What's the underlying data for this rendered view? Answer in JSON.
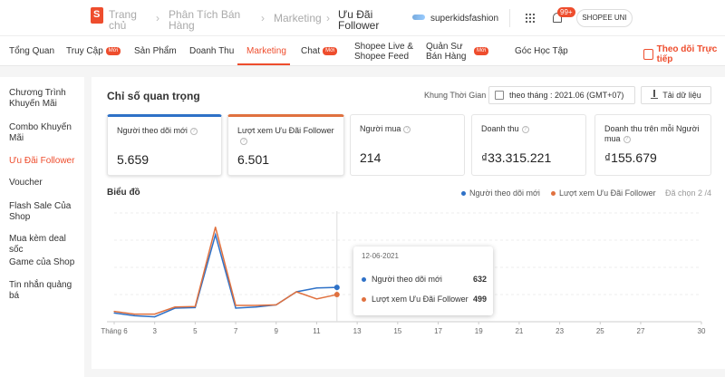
{
  "header": {
    "crumbs": [
      "Trang chủ",
      "Phân Tích Bán Hàng",
      "Marketing",
      "Ưu Đãi Follower"
    ],
    "shop_name": "superkidsfashion",
    "notif_count": "99+",
    "user_label": "SHOPEE UNI"
  },
  "nav": {
    "tabs": [
      {
        "label": "Tổng Quan"
      },
      {
        "label": "Truy Cập",
        "badge": "Mới"
      },
      {
        "label": "Sản Phẩm"
      },
      {
        "label": "Doanh Thu"
      },
      {
        "label": "Marketing"
      },
      {
        "label": "Chat",
        "badge": "Mới"
      },
      {
        "label": "Shopee Live & Shopee Feed"
      },
      {
        "label": "Quản Sư Bán Hàng",
        "badge": "Mới"
      },
      {
        "label": "Góc Học Tập"
      }
    ],
    "active_tab": "Marketing",
    "follow_link": "Theo dõi Trực tiếp"
  },
  "sidebar": {
    "items": [
      {
        "label": "Chương Trình Khuyến Mãi"
      },
      {
        "label": "Combo Khuyến Mãi"
      },
      {
        "label": "Ưu Đãi Follower"
      },
      {
        "label": "Voucher"
      },
      {
        "label": "Flash Sale Của Shop"
      },
      {
        "label": "Mua kèm deal sốc"
      },
      {
        "label": "Game của Shop"
      },
      {
        "label": "Tin nhắn quảng bá"
      }
    ],
    "active_item": "Ưu Đãi Follower"
  },
  "main": {
    "section_title": "Chỉ số quan trọng",
    "time_label": "Khung Thời Gian",
    "time_value": "theo tháng :  2021.06 (GMT+07)",
    "download_label": "Tải dữ liệu",
    "metrics": [
      {
        "label": "Người theo dõi mới",
        "value": "5.659"
      },
      {
        "label": "Lượt xem Ưu Đãi Follower",
        "value": "6.501"
      },
      {
        "label": "Người mua",
        "value": "214"
      },
      {
        "label": "Doanh thu",
        "value": "₫33.315.221"
      },
      {
        "label": "Doanh thu trên mỗi Người mua",
        "value": "₫155.679"
      }
    ],
    "chart_title": "Biểu đồ",
    "legend": [
      {
        "name": "Người theo dõi mới",
        "color": "#2e71c7"
      },
      {
        "name": "Lượt xem Ưu Đãi Follower",
        "color": "#e0713f"
      }
    ],
    "selected_count": "Đã chọn 2 /4"
  },
  "tooltip": {
    "date": "12-06-2021",
    "rows": [
      {
        "name": "Người theo dõi mới",
        "value": "632",
        "color": "#2e71c7"
      },
      {
        "name": "Lượt xem Ưu Đãi Follower",
        "value": "499",
        "color": "#e0713f"
      }
    ]
  },
  "chart_data": {
    "type": "line",
    "x_ticks": [
      "Tháng 6",
      "3",
      "5",
      "7",
      "9",
      "11",
      "13",
      "15",
      "17",
      "19",
      "21",
      "23",
      "25",
      "27",
      "30"
    ],
    "x": [
      1,
      2,
      3,
      4,
      5,
      6,
      7,
      8,
      9,
      10,
      11,
      12
    ],
    "series": [
      {
        "name": "Người theo dõi mới",
        "color": "#2e71c7",
        "values": [
          160,
          110,
          90,
          250,
          260,
          1600,
          250,
          270,
          310,
          550,
          620,
          632
        ]
      },
      {
        "name": "Lượt xem Ưu Đãi Follower",
        "color": "#e0713f",
        "values": [
          190,
          140,
          140,
          270,
          280,
          1740,
          300,
          300,
          310,
          550,
          420,
          499
        ]
      }
    ],
    "ylim": [
      0,
      2000
    ],
    "xlim": [
      1,
      30
    ],
    "grid": true,
    "hover_x": 12,
    "legend_position": "top-right"
  }
}
